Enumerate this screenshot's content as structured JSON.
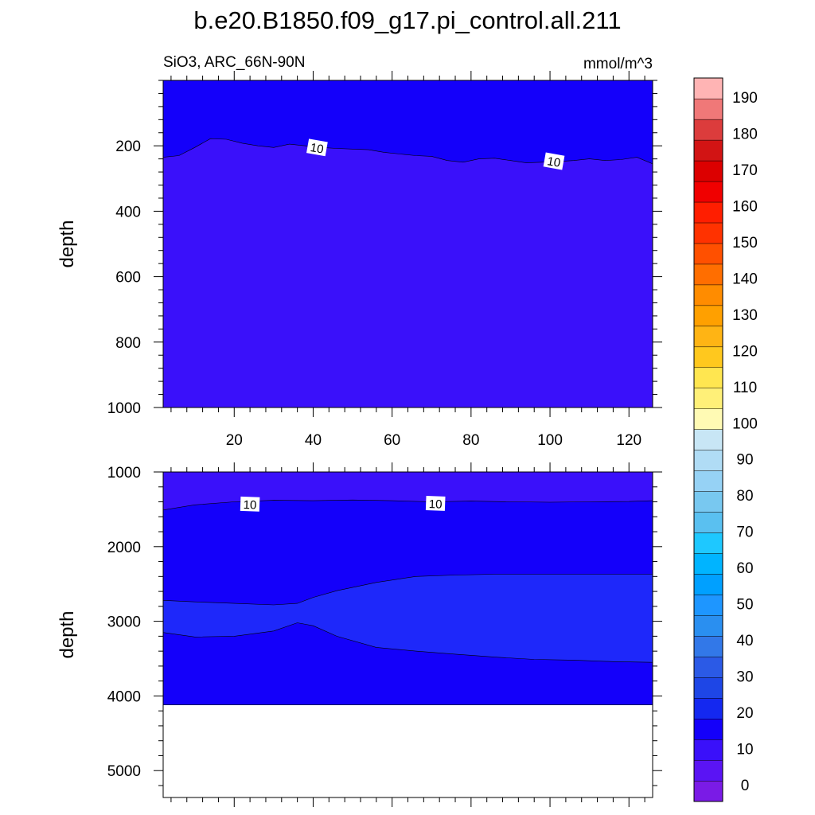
{
  "title": "b.e20.B1850.f09_g17.pi_control.all.211",
  "left_subtitle": "SiO3, ARC_66N-90N",
  "right_subtitle": "mmol/m^3",
  "chart_data": [
    {
      "type": "contour",
      "panel": "upper",
      "ylabel": "depth",
      "xlim": [
        2,
        126
      ],
      "ylim": [
        1000,
        0
      ],
      "xticks": [
        "20",
        "40",
        "60",
        "80",
        "100",
        "120"
      ],
      "xtick_values": [
        20,
        40,
        60,
        80,
        100,
        120
      ],
      "yticks": [
        "200",
        "400",
        "600",
        "800",
        "1000"
      ],
      "ytick_values": [
        200,
        400,
        600,
        800,
        1000
      ],
      "regions": [
        {
          "range": "5-10",
          "color": "#3a10fa",
          "top": 0,
          "bottom": 1000
        },
        {
          "range": "10-15",
          "color": "#1400fa",
          "top": 0,
          "bottom_boundary": "contour_10"
        }
      ],
      "contour_10": {
        "x": [
          2,
          6,
          10,
          14,
          18,
          22,
          26,
          30,
          34,
          38,
          42,
          46,
          50,
          54,
          58,
          62,
          66,
          70,
          74,
          78,
          82,
          86,
          90,
          94,
          98,
          102,
          106,
          110,
          114,
          118,
          122,
          126
        ],
        "y": [
          235,
          230,
          205,
          178,
          180,
          192,
          200,
          205,
          195,
          200,
          205,
          208,
          210,
          212,
          220,
          225,
          230,
          232,
          245,
          250,
          240,
          238,
          245,
          252,
          250,
          248,
          245,
          240,
          245,
          242,
          235,
          255
        ]
      },
      "contour_labels": [
        {
          "text": "10",
          "x": 41,
          "y": 205
        },
        {
          "text": "10",
          "x": 101,
          "y": 247
        }
      ]
    },
    {
      "type": "contour",
      "panel": "lower",
      "ylabel": "depth",
      "xlim": [
        2,
        126
      ],
      "ylim": [
        5360,
        1000
      ],
      "xticks": [
        "20",
        "40",
        "60",
        "80",
        "100",
        "120"
      ],
      "yticks": [
        "1000",
        "2000",
        "3000",
        "4000",
        "5000"
      ],
      "ytick_values": [
        1000,
        2000,
        3000,
        4000,
        5000
      ],
      "bottom_of_data": 4120,
      "regions": [
        {
          "range": "5-10",
          "color": "#3a10fa",
          "top": 1000,
          "bottom_boundary": "contour_10"
        },
        {
          "range": "10-15",
          "color": "#1400fa",
          "top_boundary": "contour_10",
          "bottom": 4120
        },
        {
          "range": "15-20",
          "color": "#1e28fa",
          "top_boundary": "contour_15_upper",
          "bottom_boundary": "contour_15_lower"
        }
      ],
      "contour_10": {
        "x": [
          2,
          10,
          20,
          30,
          40,
          50,
          60,
          70,
          80,
          90,
          100,
          110,
          120,
          126
        ],
        "y": [
          1510,
          1440,
          1400,
          1380,
          1385,
          1375,
          1385,
          1400,
          1390,
          1400,
          1405,
          1400,
          1395,
          1385
        ]
      },
      "contour_15_upper": {
        "x": [
          2,
          10,
          20,
          30,
          36,
          40,
          46,
          56,
          66,
          76,
          86,
          96,
          106,
          116,
          126
        ],
        "y": [
          2720,
          2740,
          2760,
          2780,
          2760,
          2680,
          2590,
          2480,
          2400,
          2380,
          2370,
          2370,
          2370,
          2370,
          2370
        ]
      },
      "contour_15_lower": {
        "x": [
          2,
          10,
          20,
          30,
          36,
          40,
          46,
          56,
          66,
          76,
          86,
          96,
          106,
          116,
          126
        ],
        "y": [
          3150,
          3210,
          3200,
          3130,
          3020,
          3060,
          3200,
          3350,
          3400,
          3440,
          3480,
          3510,
          3520,
          3540,
          3550
        ]
      },
      "contour_labels": [
        {
          "text": "10",
          "x": 24,
          "y": 1430
        },
        {
          "text": "10",
          "x": 71,
          "y": 1420
        }
      ]
    }
  ],
  "colorbar": {
    "labels": [
      "0",
      "10",
      "20",
      "30",
      "40",
      "50",
      "60",
      "70",
      "80",
      "90",
      "100",
      "110",
      "120",
      "130",
      "140",
      "150",
      "160",
      "170",
      "180",
      "190"
    ],
    "colors": [
      "#7a1be6",
      "#5a14f4",
      "#3a10fa",
      "#1400fa",
      "#1428f0",
      "#1e46e6",
      "#2b5ae6",
      "#3278e8",
      "#2a8ff0",
      "#1e96ff",
      "#00a0ff",
      "#00b4ff",
      "#1ec8ff",
      "#5ac0f0",
      "#78c8f0",
      "#96d2f5",
      "#b0dcf5",
      "#c8e6f5",
      "#fffab4",
      "#fff078",
      "#ffe650",
      "#ffc81e",
      "#ffb414",
      "#ffa000",
      "#ff8c00",
      "#ff6e00",
      "#ff5000",
      "#ff3200",
      "#ff1e00",
      "#f00000",
      "#dc0000",
      "#d21414",
      "#dc3c3c",
      "#f07878",
      "#ffb4b4"
    ]
  }
}
